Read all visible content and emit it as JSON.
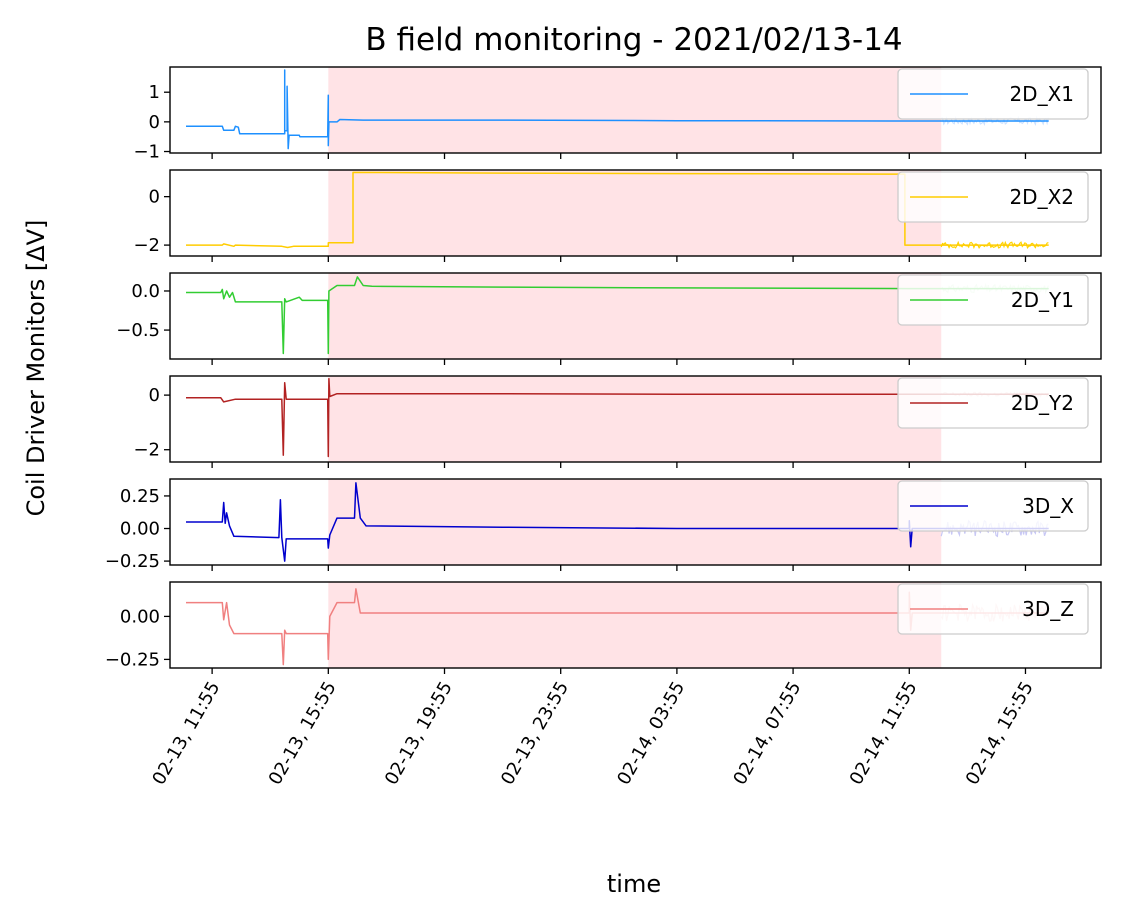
{
  "chart_data": {
    "type": "line",
    "title": "B field monitoring - 2021/02/13-14",
    "xlabel": "time",
    "ylabel": "Coil Driver Monitors [ΔV]",
    "x_ticks": [
      {
        "label": "02-13, 11:55",
        "hours": 0
      },
      {
        "label": "02-13, 15:55",
        "hours": 4
      },
      {
        "label": "02-13, 19:55",
        "hours": 8
      },
      {
        "label": "02-13, 23:55",
        "hours": 12
      },
      {
        "label": "02-14, 03:55",
        "hours": 16
      },
      {
        "label": "02-14, 07:55",
        "hours": 20
      },
      {
        "label": "02-14, 11:55",
        "hours": 24
      },
      {
        "label": "02-14, 15:55",
        "hours": 28
      }
    ],
    "xlim_hours": [
      -1.45,
      30.6
    ],
    "shaded_interval_hours": [
      4.0,
      25.1
    ],
    "shaded_color": "#ffe3e6",
    "legend_position": "right",
    "panels": [
      {
        "name": "2D_X1",
        "color": "#1e90ff",
        "ylim": [
          -1.05,
          1.85
        ],
        "yticks": [
          {
            "v": 1,
            "label": "1"
          },
          {
            "v": 0,
            "label": "0"
          },
          {
            "v": -1,
            "label": "−1"
          }
        ],
        "points": [
          [
            -0.9,
            -0.15
          ],
          [
            0.35,
            -0.15
          ],
          [
            0.4,
            -0.28
          ],
          [
            0.75,
            -0.28
          ],
          [
            0.8,
            -0.15
          ],
          [
            0.9,
            -0.18
          ],
          [
            0.95,
            -0.4
          ],
          [
            2.5,
            -0.4
          ],
          [
            2.5,
            1.75
          ],
          [
            2.5,
            -0.3
          ],
          [
            2.58,
            -0.3
          ],
          [
            2.58,
            1.2
          ],
          [
            2.62,
            -0.9
          ],
          [
            2.65,
            -0.45
          ],
          [
            3.0,
            -0.45
          ],
          [
            3.02,
            -0.5
          ],
          [
            3.98,
            -0.5
          ],
          [
            4.0,
            0.9
          ],
          [
            4.0,
            -0.8
          ],
          [
            4.02,
            0.0
          ],
          [
            4.3,
            0.0
          ],
          [
            4.4,
            0.08
          ],
          [
            5.2,
            0.06
          ],
          [
            10,
            0.06
          ],
          [
            16,
            0.04
          ],
          [
            24,
            0.03
          ],
          [
            24.5,
            0.03
          ],
          [
            25.1,
            0.03
          ],
          [
            28.8,
            0.03
          ]
        ],
        "noise": {
          "from": 25.1,
          "to": 28.8,
          "amp": 0.12,
          "color": "#cde2ff"
        }
      },
      {
        "name": "2D_X2",
        "color": "#ffcc00",
        "ylim": [
          -2.45,
          1.1
        ],
        "yticks": [
          {
            "v": 0,
            "label": "0"
          },
          {
            "v": -2,
            "label": "−2"
          }
        ],
        "points": [
          [
            -0.9,
            -2.0
          ],
          [
            0.35,
            -2.0
          ],
          [
            0.4,
            -1.95
          ],
          [
            0.75,
            -2.05
          ],
          [
            0.8,
            -2.0
          ],
          [
            2.4,
            -2.05
          ],
          [
            2.6,
            -2.1
          ],
          [
            2.8,
            -2.05
          ],
          [
            4.0,
            -2.05
          ],
          [
            4.0,
            -1.9
          ],
          [
            4.85,
            -1.9
          ],
          [
            4.85,
            1.0
          ],
          [
            10,
            0.97
          ],
          [
            16,
            0.95
          ],
          [
            23.85,
            0.93
          ],
          [
            23.85,
            -2.0
          ],
          [
            25.1,
            -2.0
          ],
          [
            28.8,
            -2.0
          ]
        ],
        "noise": {
          "from": 25.1,
          "to": 28.8,
          "amp": 0.12,
          "color": "#ffd400"
        }
      },
      {
        "name": "2D_Y1",
        "color": "#32cd32",
        "ylim": [
          -0.87,
          0.23
        ],
        "yticks": [
          {
            "v": 0.0,
            "label": "0.0"
          },
          {
            "v": -0.5,
            "label": "−0.5"
          }
        ],
        "points": [
          [
            -0.9,
            -0.02
          ],
          [
            0.3,
            -0.02
          ],
          [
            0.35,
            0.02
          ],
          [
            0.4,
            -0.1
          ],
          [
            0.5,
            0.0
          ],
          [
            0.6,
            -0.08
          ],
          [
            0.7,
            -0.02
          ],
          [
            0.8,
            -0.14
          ],
          [
            2.4,
            -0.14
          ],
          [
            2.45,
            -0.8
          ],
          [
            2.5,
            -0.1
          ],
          [
            2.55,
            -0.14
          ],
          [
            3.0,
            -0.08
          ],
          [
            3.1,
            -0.12
          ],
          [
            3.98,
            -0.12
          ],
          [
            4.0,
            -0.8
          ],
          [
            4.02,
            0.0
          ],
          [
            4.3,
            0.07
          ],
          [
            4.9,
            0.07
          ],
          [
            5.0,
            0.18
          ],
          [
            5.2,
            0.07
          ],
          [
            5.5,
            0.06
          ],
          [
            10,
            0.05
          ],
          [
            16,
            0.04
          ],
          [
            24,
            0.03
          ],
          [
            25.1,
            0.03
          ],
          [
            28.8,
            0.03
          ]
        ],
        "noise": {
          "from": 25.1,
          "to": 28.8,
          "amp": 0.05,
          "color": "#cff5cf"
        }
      },
      {
        "name": "2D_Y2",
        "color": "#b22222",
        "ylim": [
          -2.45,
          0.7
        ],
        "yticks": [
          {
            "v": 0,
            "label": "0"
          },
          {
            "v": -2,
            "label": "−2"
          }
        ],
        "points": [
          [
            -0.9,
            -0.1
          ],
          [
            0.3,
            -0.1
          ],
          [
            0.4,
            -0.25
          ],
          [
            0.8,
            -0.15
          ],
          [
            2.4,
            -0.15
          ],
          [
            2.45,
            -2.2
          ],
          [
            2.5,
            0.45
          ],
          [
            2.55,
            -0.15
          ],
          [
            3.98,
            -0.15
          ],
          [
            4.0,
            -2.25
          ],
          [
            4.02,
            0.6
          ],
          [
            4.05,
            -0.05
          ],
          [
            4.3,
            0.05
          ],
          [
            10,
            0.05
          ],
          [
            16,
            0.03
          ],
          [
            24,
            0.03
          ],
          [
            25.1,
            0.03
          ],
          [
            28.8,
            0.03
          ]
        ],
        "noise": {
          "from": 25.1,
          "to": 28.8,
          "amp": 0.08,
          "color": "#f0d0d0"
        }
      },
      {
        "name": "3D_X",
        "color": "#0000cd",
        "ylim": [
          -0.28,
          0.38
        ],
        "yticks": [
          {
            "v": 0.25,
            "label": "0.25"
          },
          {
            "v": 0.0,
            "label": "0.00"
          },
          {
            "v": -0.25,
            "label": "−0.25"
          }
        ],
        "points": [
          [
            -0.9,
            0.05
          ],
          [
            0.35,
            0.05
          ],
          [
            0.4,
            0.2
          ],
          [
            0.45,
            0.04
          ],
          [
            0.5,
            0.12
          ],
          [
            0.6,
            0.02
          ],
          [
            0.75,
            -0.06
          ],
          [
            2.3,
            -0.07
          ],
          [
            2.35,
            0.22
          ],
          [
            2.4,
            -0.07
          ],
          [
            2.5,
            -0.25
          ],
          [
            2.55,
            -0.08
          ],
          [
            3.98,
            -0.08
          ],
          [
            4.0,
            -0.15
          ],
          [
            4.05,
            -0.05
          ],
          [
            4.3,
            0.08
          ],
          [
            4.9,
            0.08
          ],
          [
            4.95,
            0.35
          ],
          [
            5.1,
            0.08
          ],
          [
            5.3,
            0.02
          ],
          [
            10,
            0.01
          ],
          [
            16,
            0.0
          ],
          [
            24,
            0.0
          ],
          [
            24.0,
            0.06
          ],
          [
            24.05,
            -0.14
          ],
          [
            24.1,
            0.0
          ],
          [
            25.1,
            0.0
          ],
          [
            28.8,
            0.0
          ]
        ],
        "noise": {
          "from": 25.1,
          "to": 28.8,
          "amp": 0.06,
          "color": "#c8c8f5"
        }
      },
      {
        "name": "3D_Z",
        "color": "#f08080",
        "ylim": [
          -0.3,
          0.2
        ],
        "yticks": [
          {
            "v": 0.0,
            "label": "0.00"
          },
          {
            "v": -0.25,
            "label": "−0.25"
          }
        ],
        "points": [
          [
            -0.9,
            0.08
          ],
          [
            0.35,
            0.08
          ],
          [
            0.4,
            -0.02
          ],
          [
            0.5,
            0.08
          ],
          [
            0.6,
            -0.05
          ],
          [
            0.75,
            -0.1
          ],
          [
            2.4,
            -0.1
          ],
          [
            2.45,
            -0.28
          ],
          [
            2.5,
            -0.08
          ],
          [
            2.55,
            -0.1
          ],
          [
            3.98,
            -0.1
          ],
          [
            4.0,
            -0.25
          ],
          [
            4.05,
            0.0
          ],
          [
            4.3,
            0.08
          ],
          [
            4.9,
            0.08
          ],
          [
            4.95,
            0.16
          ],
          [
            5.1,
            0.02
          ],
          [
            10,
            0.02
          ],
          [
            16,
            0.02
          ],
          [
            24,
            0.02
          ],
          [
            24.0,
            0.14
          ],
          [
            24.05,
            -0.08
          ],
          [
            24.1,
            0.02
          ],
          [
            25.1,
            0.02
          ],
          [
            28.8,
            0.02
          ]
        ],
        "noise": {
          "from": 25.1,
          "to": 28.8,
          "amp": 0.05,
          "color": "#f8d0d0"
        }
      }
    ]
  }
}
